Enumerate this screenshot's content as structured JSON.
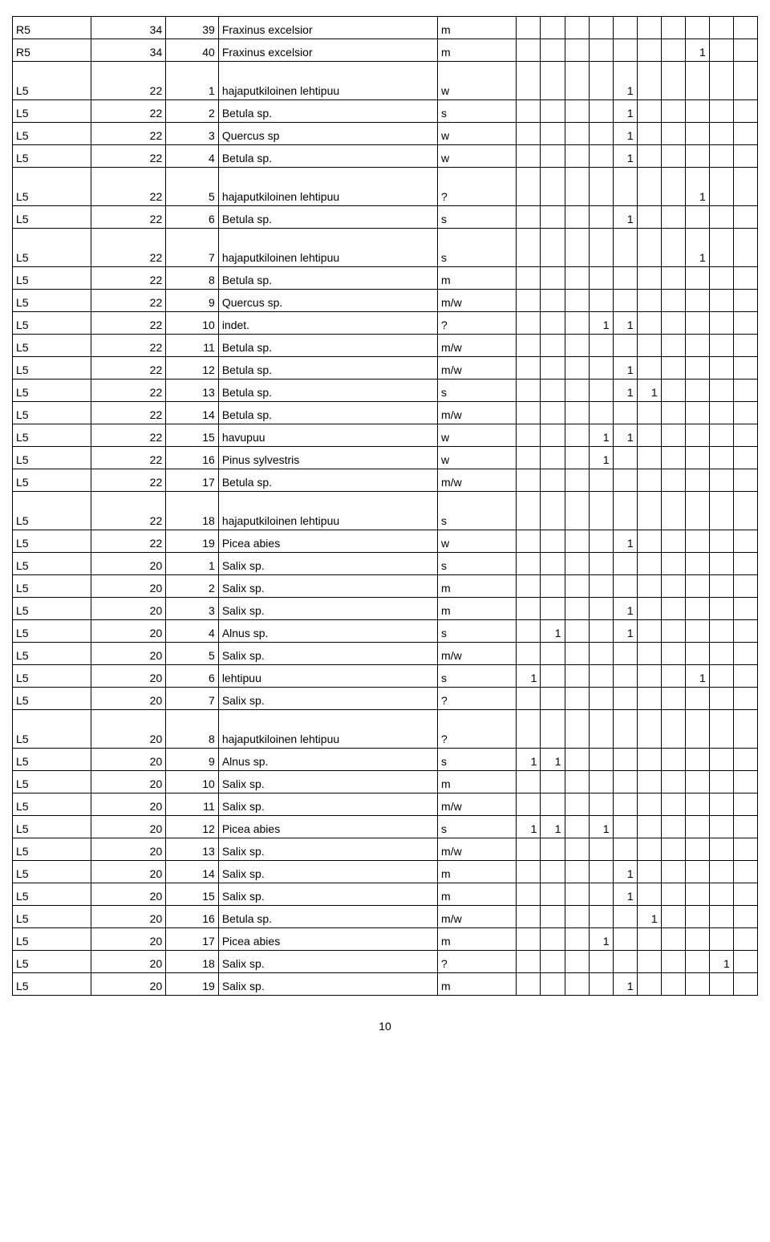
{
  "page_number": "10",
  "columns": {
    "narrow_width": 22,
    "col0_width": 72,
    "col1_width": 68,
    "col2_width": 48,
    "col3_width": 200,
    "col4_width": 72
  },
  "rows": [
    {
      "c0": "R5",
      "c1": "34",
      "c2": "39",
      "c3": "Fraxinus excelsior",
      "c4": "m",
      "n": [
        "",
        "",
        "",
        "",
        "",
        "",
        "",
        "",
        "",
        ""
      ],
      "tall": false
    },
    {
      "c0": "R5",
      "c1": "34",
      "c2": "40",
      "c3": "Fraxinus excelsior",
      "c4": "m",
      "n": [
        "",
        "",
        "",
        "",
        "",
        "",
        "",
        "1",
        "",
        ""
      ],
      "tall": false
    },
    {
      "c0": "L5",
      "c1": "22",
      "c2": "1",
      "c3": "hajaputkiloinen lehtipuu",
      "c4": "w",
      "n": [
        "",
        "",
        "",
        "",
        "1",
        "",
        "",
        "",
        "",
        ""
      ],
      "tall": true
    },
    {
      "c0": "L5",
      "c1": "22",
      "c2": "2",
      "c3": "Betula sp.",
      "c4": "s",
      "n": [
        "",
        "",
        "",
        "",
        "1",
        "",
        "",
        "",
        "",
        ""
      ],
      "tall": false
    },
    {
      "c0": "L5",
      "c1": "22",
      "c2": "3",
      "c3": "Quercus sp",
      "c4": "w",
      "n": [
        "",
        "",
        "",
        "",
        "1",
        "",
        "",
        "",
        "",
        ""
      ],
      "tall": false
    },
    {
      "c0": "L5",
      "c1": "22",
      "c2": "4",
      "c3": "Betula sp.",
      "c4": "w",
      "n": [
        "",
        "",
        "",
        "",
        "1",
        "",
        "",
        "",
        "",
        ""
      ],
      "tall": false
    },
    {
      "c0": "L5",
      "c1": "22",
      "c2": "5",
      "c3": "hajaputkiloinen lehtipuu",
      "c4": "?",
      "n": [
        "",
        "",
        "",
        "",
        "",
        "",
        "",
        "1",
        "",
        ""
      ],
      "tall": true
    },
    {
      "c0": "L5",
      "c1": "22",
      "c2": "6",
      "c3": "Betula sp.",
      "c4": "s",
      "n": [
        "",
        "",
        "",
        "",
        "1",
        "",
        "",
        "",
        "",
        ""
      ],
      "tall": false
    },
    {
      "c0": "L5",
      "c1": "22",
      "c2": "7",
      "c3": "hajaputkiloinen lehtipuu",
      "c4": "s",
      "n": [
        "",
        "",
        "",
        "",
        "",
        "",
        "",
        "1",
        "",
        ""
      ],
      "tall": true
    },
    {
      "c0": "L5",
      "c1": "22",
      "c2": "8",
      "c3": "Betula sp.",
      "c4": "m",
      "n": [
        "",
        "",
        "",
        "",
        "",
        "",
        "",
        "",
        "",
        ""
      ],
      "tall": false
    },
    {
      "c0": "L5",
      "c1": "22",
      "c2": "9",
      "c3": "Quercus sp.",
      "c4": "m/w",
      "n": [
        "",
        "",
        "",
        "",
        "",
        "",
        "",
        "",
        "",
        ""
      ],
      "tall": false
    },
    {
      "c0": "L5",
      "c1": "22",
      "c2": "10",
      "c3": "indet.",
      "c4": "?",
      "n": [
        "",
        "",
        "",
        "1",
        "1",
        "",
        "",
        "",
        "",
        ""
      ],
      "tall": false
    },
    {
      "c0": "L5",
      "c1": "22",
      "c2": "11",
      "c3": "Betula sp.",
      "c4": "m/w",
      "n": [
        "",
        "",
        "",
        "",
        "",
        "",
        "",
        "",
        "",
        ""
      ],
      "tall": false
    },
    {
      "c0": "L5",
      "c1": "22",
      "c2": "12",
      "c3": "Betula sp.",
      "c4": "m/w",
      "n": [
        "",
        "",
        "",
        "",
        "1",
        "",
        "",
        "",
        "",
        ""
      ],
      "tall": false
    },
    {
      "c0": "L5",
      "c1": "22",
      "c2": "13",
      "c3": "Betula sp.",
      "c4": "s",
      "n": [
        "",
        "",
        "",
        "",
        "1",
        "1",
        "",
        "",
        "",
        ""
      ],
      "tall": false
    },
    {
      "c0": "L5",
      "c1": "22",
      "c2": "14",
      "c3": "Betula sp.",
      "c4": "m/w",
      "n": [
        "",
        "",
        "",
        "",
        "",
        "",
        "",
        "",
        "",
        ""
      ],
      "tall": false
    },
    {
      "c0": "L5",
      "c1": "22",
      "c2": "15",
      "c3": "havupuu",
      "c4": "w",
      "n": [
        "",
        "",
        "",
        "1",
        "1",
        "",
        "",
        "",
        "",
        ""
      ],
      "tall": false
    },
    {
      "c0": "L5",
      "c1": "22",
      "c2": "16",
      "c3": "Pinus sylvestris",
      "c4": "w",
      "n": [
        "",
        "",
        "",
        "1",
        "",
        "",
        "",
        "",
        "",
        ""
      ],
      "tall": false
    },
    {
      "c0": "L5",
      "c1": "22",
      "c2": "17",
      "c3": "Betula sp.",
      "c4": "m/w",
      "n": [
        "",
        "",
        "",
        "",
        "",
        "",
        "",
        "",
        "",
        ""
      ],
      "tall": false
    },
    {
      "c0": "L5",
      "c1": "22",
      "c2": "18",
      "c3": "hajaputkiloinen lehtipuu",
      "c4": "s",
      "n": [
        "",
        "",
        "",
        "",
        "",
        "",
        "",
        "",
        "",
        ""
      ],
      "tall": true
    },
    {
      "c0": "L5",
      "c1": "22",
      "c2": "19",
      "c3": "Picea abies",
      "c4": "w",
      "n": [
        "",
        "",
        "",
        "",
        "1",
        "",
        "",
        "",
        "",
        ""
      ],
      "tall": false
    },
    {
      "c0": "L5",
      "c1": "20",
      "c2": "1",
      "c3": "Salix sp.",
      "c4": "s",
      "n": [
        "",
        "",
        "",
        "",
        "",
        "",
        "",
        "",
        "",
        ""
      ],
      "tall": false
    },
    {
      "c0": "L5",
      "c1": "20",
      "c2": "2",
      "c3": "Salix sp.",
      "c4": "m",
      "n": [
        "",
        "",
        "",
        "",
        "",
        "",
        "",
        "",
        "",
        ""
      ],
      "tall": false
    },
    {
      "c0": "L5",
      "c1": "20",
      "c2": "3",
      "c3": "Salix sp.",
      "c4": "m",
      "n": [
        "",
        "",
        "",
        "",
        "1",
        "",
        "",
        "",
        "",
        ""
      ],
      "tall": false
    },
    {
      "c0": "L5",
      "c1": "20",
      "c2": "4",
      "c3": "Alnus sp.",
      "c4": "s",
      "n": [
        "",
        "1",
        "",
        "",
        "1",
        "",
        "",
        "",
        "",
        ""
      ],
      "tall": false
    },
    {
      "c0": "L5",
      "c1": "20",
      "c2": "5",
      "c3": "Salix sp.",
      "c4": "m/w",
      "n": [
        "",
        "",
        "",
        "",
        "",
        "",
        "",
        "",
        "",
        ""
      ],
      "tall": false
    },
    {
      "c0": "L5",
      "c1": "20",
      "c2": "6",
      "c3": "lehtipuu",
      "c4": "s",
      "n": [
        "1",
        "",
        "",
        "",
        "",
        "",
        "",
        "1",
        "",
        ""
      ],
      "tall": false
    },
    {
      "c0": "L5",
      "c1": "20",
      "c2": "7",
      "c3": "Salix sp.",
      "c4": "?",
      "n": [
        "",
        "",
        "",
        "",
        "",
        "",
        "",
        "",
        "",
        ""
      ],
      "tall": false
    },
    {
      "c0": "L5",
      "c1": "20",
      "c2": "8",
      "c3": "hajaputkiloinen lehtipuu",
      "c4": "?",
      "n": [
        "",
        "",
        "",
        "",
        "",
        "",
        "",
        "",
        "",
        ""
      ],
      "tall": true
    },
    {
      "c0": "L5",
      "c1": "20",
      "c2": "9",
      "c3": "Alnus sp.",
      "c4": "s",
      "n": [
        "1",
        "1",
        "",
        "",
        "",
        "",
        "",
        "",
        "",
        ""
      ],
      "tall": false
    },
    {
      "c0": "L5",
      "c1": "20",
      "c2": "10",
      "c3": "Salix sp.",
      "c4": "m",
      "n": [
        "",
        "",
        "",
        "",
        "",
        "",
        "",
        "",
        "",
        ""
      ],
      "tall": false
    },
    {
      "c0": "L5",
      "c1": "20",
      "c2": "11",
      "c3": "Salix sp.",
      "c4": "m/w",
      "n": [
        "",
        "",
        "",
        "",
        "",
        "",
        "",
        "",
        "",
        ""
      ],
      "tall": false
    },
    {
      "c0": "L5",
      "c1": "20",
      "c2": "12",
      "c3": "Picea abies",
      "c4": "s",
      "n": [
        "1",
        "1",
        "",
        "1",
        "",
        "",
        "",
        "",
        "",
        ""
      ],
      "tall": false
    },
    {
      "c0": "L5",
      "c1": "20",
      "c2": "13",
      "c3": "Salix sp.",
      "c4": "m/w",
      "n": [
        "",
        "",
        "",
        "",
        "",
        "",
        "",
        "",
        "",
        ""
      ],
      "tall": false
    },
    {
      "c0": "L5",
      "c1": "20",
      "c2": "14",
      "c3": "Salix sp.",
      "c4": "m",
      "n": [
        "",
        "",
        "",
        "",
        "1",
        "",
        "",
        "",
        "",
        ""
      ],
      "tall": false
    },
    {
      "c0": "L5",
      "c1": "20",
      "c2": "15",
      "c3": "Salix sp.",
      "c4": "m",
      "n": [
        "",
        "",
        "",
        "",
        "1",
        "",
        "",
        "",
        "",
        ""
      ],
      "tall": false
    },
    {
      "c0": "L5",
      "c1": "20",
      "c2": "16",
      "c3": "Betula sp.",
      "c4": "m/w",
      "n": [
        "",
        "",
        "",
        "",
        "",
        "1",
        "",
        "",
        "",
        ""
      ],
      "tall": false
    },
    {
      "c0": "L5",
      "c1": "20",
      "c2": "17",
      "c3": "Picea abies",
      "c4": "m",
      "n": [
        "",
        "",
        "",
        "1",
        "",
        "",
        "",
        "",
        "",
        ""
      ],
      "tall": false
    },
    {
      "c0": "L5",
      "c1": "20",
      "c2": "18",
      "c3": "Salix sp.",
      "c4": "?",
      "n": [
        "",
        "",
        "",
        "",
        "",
        "",
        "",
        "",
        "1",
        ""
      ],
      "tall": false
    },
    {
      "c0": "L5",
      "c1": "20",
      "c2": "19",
      "c3": "Salix sp.",
      "c4": "m",
      "n": [
        "",
        "",
        "",
        "",
        "1",
        "",
        "",
        "",
        "",
        ""
      ],
      "tall": false
    }
  ]
}
